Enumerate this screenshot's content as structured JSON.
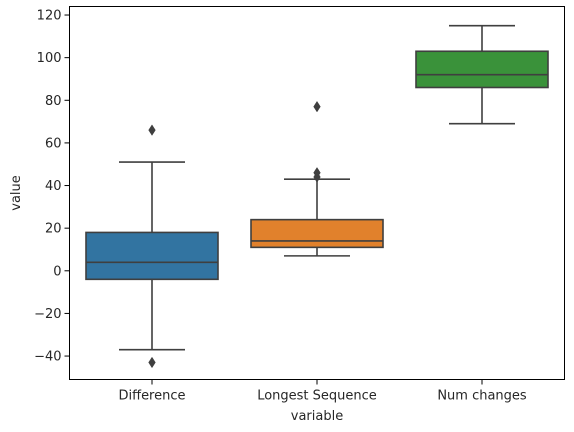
{
  "chart_data": {
    "type": "box",
    "xlabel": "variable",
    "ylabel": "value",
    "ylim": [
      -51,
      124
    ],
    "yticks": [
      -40,
      -20,
      0,
      20,
      40,
      60,
      80,
      100,
      120
    ],
    "grid": false,
    "categories": [
      "Difference",
      "Longest Sequence",
      "Num changes"
    ],
    "boxes": [
      {
        "category": "Difference",
        "color": "#3274a1",
        "whisker_low": -37,
        "q1": -4,
        "median": 4,
        "q3": 18,
        "whisker_high": 51,
        "outliers": [
          66,
          -43
        ]
      },
      {
        "category": "Longest Sequence",
        "color": "#e1812c",
        "whisker_low": 7,
        "q1": 11,
        "median": 14,
        "q3": 24,
        "whisker_high": 43,
        "outliers": [
          44,
          46,
          77
        ]
      },
      {
        "category": "Num changes",
        "color": "#3a923a",
        "whisker_low": 69,
        "q1": 86,
        "median": 92,
        "q3": 103,
        "whisker_high": 115,
        "outliers": []
      }
    ]
  }
}
